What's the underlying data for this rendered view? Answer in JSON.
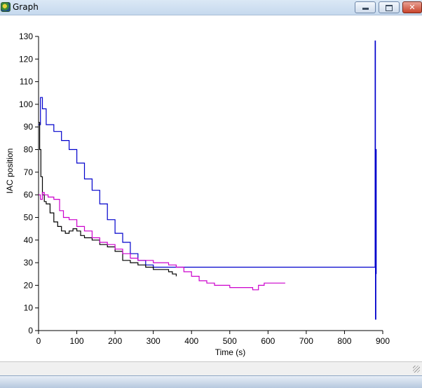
{
  "window": {
    "title": "Graph",
    "icon": "app-icon",
    "buttons": {
      "minimize": "minimize-icon",
      "maximize": "maximize-icon",
      "close": "✕"
    }
  },
  "chart_data": {
    "type": "line",
    "xlabel": "Time (s)",
    "ylabel": "IAC position",
    "xlim": [
      0,
      900
    ],
    "ylim": [
      0,
      130
    ],
    "xticks": [
      "0",
      "100",
      "200",
      "300",
      "400",
      "500",
      "600",
      "700",
      "800",
      "900"
    ],
    "yticks": [
      "0",
      "10",
      "20",
      "30",
      "40",
      "50",
      "60",
      "70",
      "80",
      "90",
      "100",
      "110",
      "120",
      "130"
    ],
    "grid": false,
    "legend": "none",
    "series": [
      {
        "color": "#0000cc",
        "points": [
          [
            0,
            91
          ],
          [
            5,
            103
          ],
          [
            10,
            98
          ],
          [
            20,
            91
          ],
          [
            40,
            88
          ],
          [
            60,
            84
          ],
          [
            80,
            80
          ],
          [
            100,
            74
          ],
          [
            120,
            67
          ],
          [
            140,
            62
          ],
          [
            160,
            56
          ],
          [
            180,
            49
          ],
          [
            200,
            43
          ],
          [
            220,
            39
          ],
          [
            240,
            34
          ],
          [
            260,
            31
          ],
          [
            280,
            29
          ],
          [
            300,
            28
          ],
          [
            360,
            28
          ],
          [
            400,
            28
          ],
          [
            500,
            28
          ],
          [
            600,
            28
          ],
          [
            700,
            28
          ],
          [
            800,
            28
          ],
          [
            875,
            28
          ],
          [
            880,
            30
          ],
          [
            880,
            128
          ],
          [
            881,
            5
          ],
          [
            882,
            80
          ],
          [
            883,
            25
          ]
        ]
      },
      {
        "color": "#000000",
        "points": [
          [
            0,
            92
          ],
          [
            3,
            80
          ],
          [
            6,
            68
          ],
          [
            10,
            60
          ],
          [
            15,
            57
          ],
          [
            20,
            56
          ],
          [
            30,
            52
          ],
          [
            40,
            48
          ],
          [
            50,
            46
          ],
          [
            60,
            44
          ],
          [
            70,
            43
          ],
          [
            80,
            44
          ],
          [
            90,
            45
          ],
          [
            100,
            44
          ],
          [
            110,
            42
          ],
          [
            120,
            41
          ],
          [
            140,
            40
          ],
          [
            160,
            38
          ],
          [
            180,
            37
          ],
          [
            200,
            35
          ],
          [
            220,
            31
          ],
          [
            240,
            30
          ],
          [
            260,
            29
          ],
          [
            280,
            28
          ],
          [
            300,
            27
          ],
          [
            320,
            27
          ],
          [
            340,
            26
          ],
          [
            350,
            25
          ],
          [
            360,
            24
          ]
        ]
      },
      {
        "color": "#cc00cc",
        "points": [
          [
            0,
            60
          ],
          [
            5,
            58
          ],
          [
            10,
            61
          ],
          [
            15,
            60
          ],
          [
            25,
            59
          ],
          [
            40,
            58
          ],
          [
            55,
            53
          ],
          [
            65,
            50
          ],
          [
            80,
            49
          ],
          [
            100,
            46
          ],
          [
            120,
            44
          ],
          [
            140,
            41
          ],
          [
            160,
            39
          ],
          [
            180,
            38
          ],
          [
            200,
            36
          ],
          [
            220,
            34
          ],
          [
            240,
            32
          ],
          [
            260,
            31
          ],
          [
            280,
            31
          ],
          [
            300,
            30
          ],
          [
            320,
            30
          ],
          [
            340,
            29
          ],
          [
            360,
            28
          ],
          [
            380,
            26
          ],
          [
            400,
            24
          ],
          [
            420,
            22
          ],
          [
            440,
            21
          ],
          [
            460,
            20
          ],
          [
            480,
            20
          ],
          [
            500,
            19
          ],
          [
            520,
            19
          ],
          [
            540,
            19
          ],
          [
            560,
            18
          ],
          [
            575,
            20
          ],
          [
            590,
            21
          ],
          [
            610,
            21
          ],
          [
            625,
            21
          ],
          [
            645,
            21
          ]
        ]
      }
    ]
  }
}
